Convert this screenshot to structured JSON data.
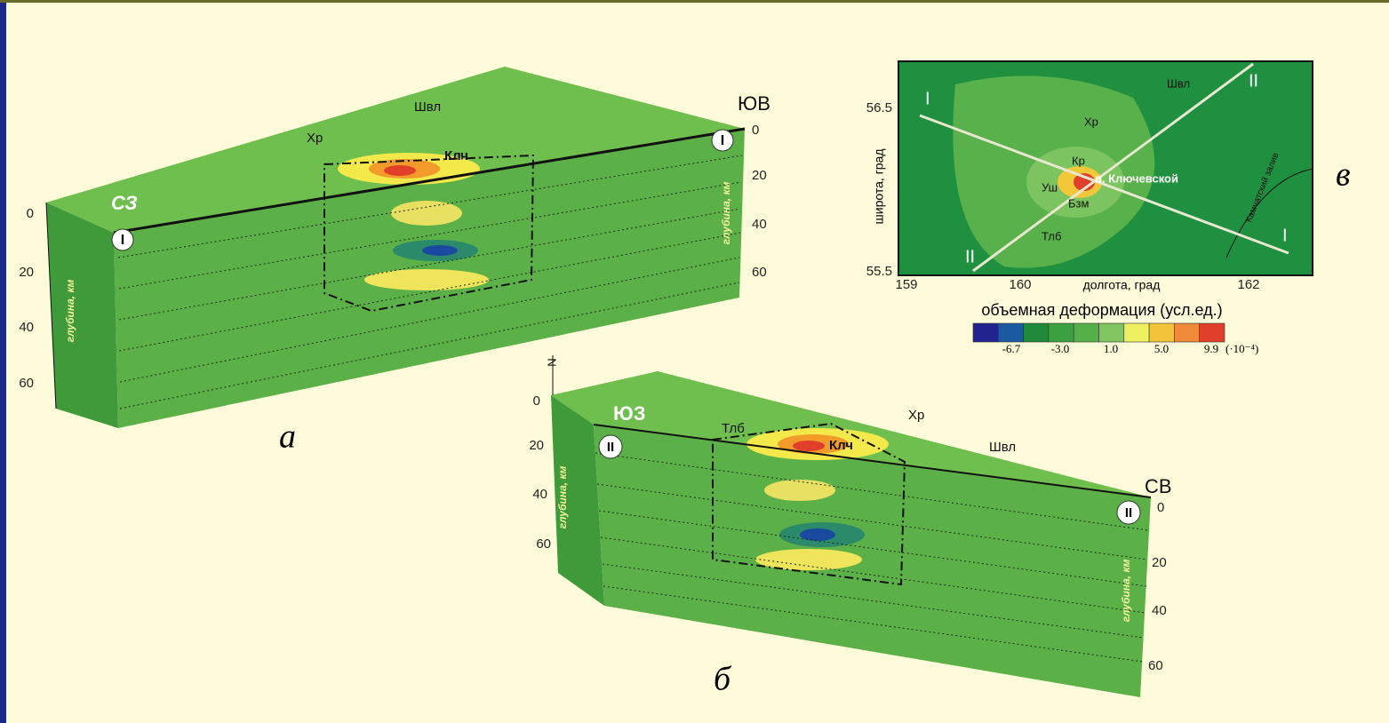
{
  "block_a": {
    "label": "а",
    "corner_left": "СЗ",
    "corner_right": "ЮВ",
    "section": "I",
    "depth_title": "глубина, км",
    "left_ticks": [
      "0",
      "20",
      "40",
      "60"
    ],
    "right_ticks": [
      "0",
      "20",
      "40",
      "60"
    ],
    "places": {
      "shvl": "Швл",
      "khr": "Хр",
      "klch": "Клч"
    }
  },
  "block_b": {
    "label": "б",
    "corner_left": "ЮЗ",
    "corner_right": "СВ",
    "section": "II",
    "north": "N",
    "depth_title": "глубина, км",
    "left_ticks": [
      "0",
      "20",
      "40",
      "60"
    ],
    "right_ticks": [
      "0",
      "20",
      "40",
      "60"
    ],
    "places": {
      "tlb": "Тлб",
      "klch": "Клч",
      "khr": "Хр",
      "shvl": "Швл"
    }
  },
  "map_v": {
    "label": "в",
    "y_title": "широта, град",
    "x_title": "долгота, град",
    "yticks": [
      "56.5",
      "55.5"
    ],
    "xticks": [
      "159",
      "160",
      "162"
    ],
    "profile_1": "I",
    "profile_2": "II",
    "places": {
      "shvl": "Швл",
      "khr": "Хр",
      "kr": "Кр",
      "ush": "Уш",
      "bzm": "Бзм",
      "tlb": "Тлб",
      "volcano": "в. Ключевской",
      "bay": "Камчатский залив"
    }
  },
  "colorbar": {
    "title": "объемная деформация (усл.ед.)",
    "ticks": [
      "-6.7",
      "-3.0",
      "1.0",
      "5.0",
      "9.9"
    ],
    "unit": "(·10⁻⁴)"
  }
}
